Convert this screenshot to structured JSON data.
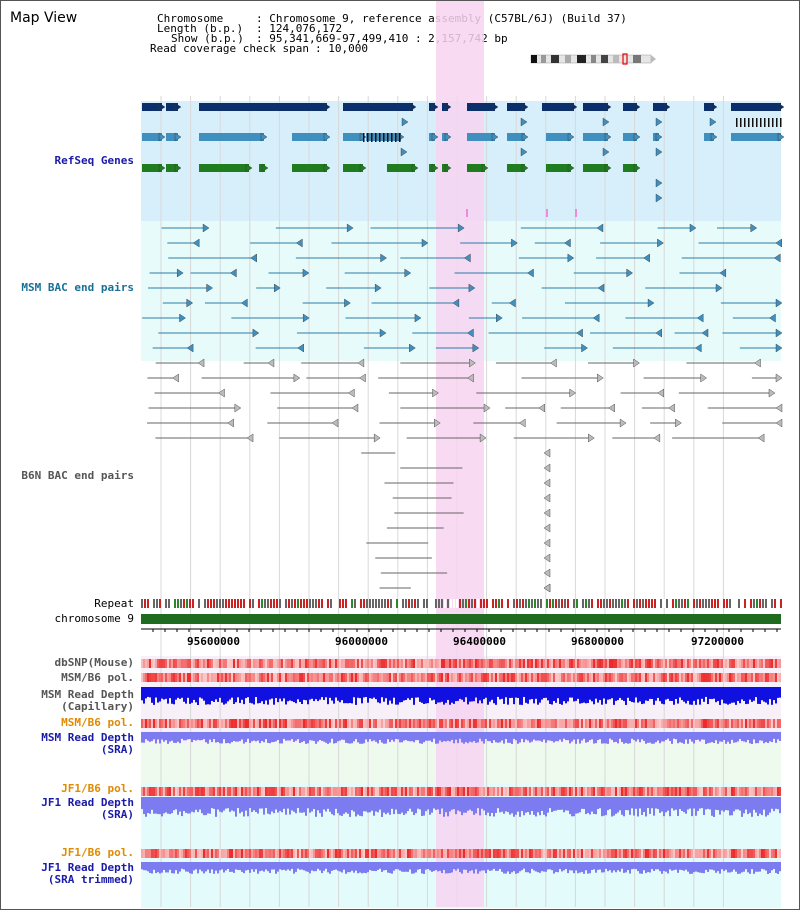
{
  "header": {
    "title": "Map View",
    "chromosome_label": "Chromosome",
    "chromosome_value": ": Chromosome 9, reference assembly (C57BL/6J) (Build 37)",
    "length_label": "Length (b.p.)",
    "length_value": ": 124,076,172",
    "show_label": "Show (b.p.)",
    "show_value": ": 95,341,669-97,499,410 : 2,157,742 bp",
    "span_label": "Read coverage check span",
    "span_value": ": 10,000"
  },
  "tracks": {
    "refseq": "RefSeq Genes",
    "msm_bac": "MSM BAC end pairs",
    "b6n_bac": "B6N BAC end pairs",
    "repeat": "Repeat",
    "chromosome": "chromosome 9",
    "dbsnp": "dbSNP(Mouse)",
    "msm_b6_pol": "MSM/B6 pol.",
    "msm_depth_cap_1": "MSM Read Depth",
    "msm_depth_cap_2": "(Capillary)",
    "msm_b6_pol_2": "MSM/B6 pol.",
    "msm_depth_sra_1": "MSM Read Depth",
    "msm_depth_sra_2": "(SRA)",
    "jf1_b6_pol": "JF1/B6 pol.",
    "jf1_depth_1": "JF1 Read Depth",
    "jf1_depth_2": "(SRA)",
    "jf1_b6_pol_2": "JF1/B6 pol.",
    "jf1_trim_1": "JF1 Read Depth",
    "jf1_trim_2": "(SRA trimmed)"
  },
  "axis": {
    "ticks": [
      "95600000",
      "96000000",
      "96400000",
      "96800000",
      "97200000"
    ]
  },
  "colors": {
    "highlight": "#f7d4f1",
    "refseq_bg": "#d7effa",
    "msm_bg": "#e8fbfb",
    "navy": "#0b2f6b",
    "steel": "#3f8fbf",
    "green": "#1f7d1f",
    "teal_line": "#2a7da6",
    "gray_line": "#666666",
    "depth_blue": "#1010e0",
    "depth_lav": "#7c7cf0",
    "pol_red": "#f05a5a"
  }
}
